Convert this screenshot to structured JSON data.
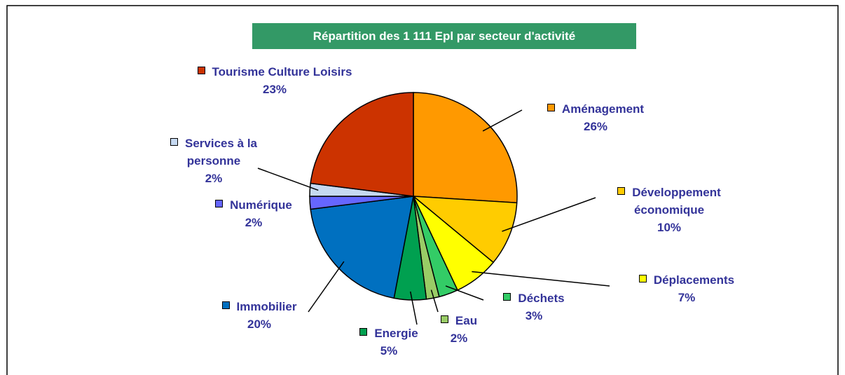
{
  "chart_data": {
    "type": "pie",
    "title": "Répartition des 1 111 Epl par secteur d'activité",
    "categories": [
      "Aménagement",
      "Développement économique",
      "Déplacements",
      "Déchets",
      "Eau",
      "Energie",
      "Immobilier",
      "Numérique",
      "Services à la personne",
      "Tourisme Culture Loisirs"
    ],
    "values": [
      26,
      10,
      7,
      3,
      2,
      5,
      20,
      2,
      2,
      23
    ],
    "value_labels": [
      "26%",
      "10%",
      "7%",
      "3%",
      "2%",
      "5%",
      "20%",
      "2%",
      "2%",
      "23%"
    ],
    "colors": [
      "#ff9900",
      "#ffcc00",
      "#ffff00",
      "#33cc66",
      "#99cc66",
      "#00a050",
      "#0070c0",
      "#6666ff",
      "#c6d9f1",
      "#cc3300"
    ]
  }
}
